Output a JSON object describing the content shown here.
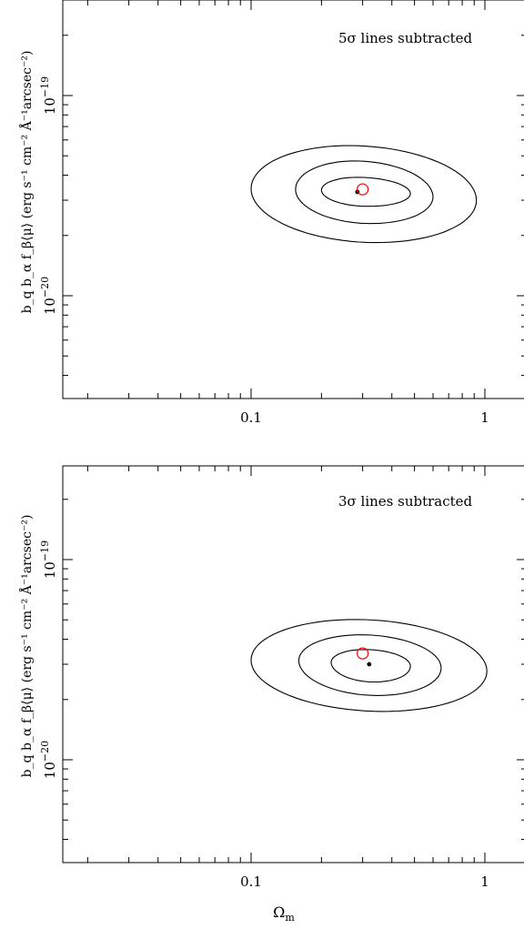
{
  "chart_data": [
    {
      "type": "scatter",
      "annotation": "5σ lines subtracted",
      "xscale": "log",
      "yscale": "log",
      "xlim": [
        0.018,
        1.6
      ],
      "ylim": [
        3.4e-21,
        3.2e-19
      ],
      "x_tick_labels": [
        {
          "value": 0.1,
          "label": "0.1"
        },
        {
          "value": 1,
          "label": "1"
        }
      ],
      "y_tick_labels": [
        {
          "value": 1e-19,
          "base": "10",
          "exp": "−19"
        },
        {
          "value": 1e-20,
          "base": "10",
          "exp": "−20"
        }
      ],
      "ylabel": "b_q b_α f_β⟨μ⟩ (erg s⁻¹ cm⁻² Å⁻¹arcsec⁻²)",
      "best_fit": {
        "x": 0.285,
        "y": 3.3e-20,
        "color": "#000000"
      },
      "reference": {
        "x": 0.3,
        "y": 3.4e-20,
        "color": "#ff0000"
      },
      "contours": [
        {
          "level": "inner",
          "center": [
            0.3,
            3.3e-20
          ],
          "x_range": [
            0.2,
            0.48
          ],
          "y_range": [
            2.8e-20,
            3.9e-20
          ]
        },
        {
          "level": "middle",
          "center": [
            0.3,
            3.25e-20
          ],
          "x_range": [
            0.155,
            0.6
          ],
          "y_range": [
            2.3e-20,
            4.7e-20
          ]
        },
        {
          "level": "outer",
          "center": [
            0.3,
            3.2e-20
          ],
          "x_range": [
            0.1,
            0.92
          ],
          "y_range": [
            1.85e-20,
            5.6e-20
          ]
        }
      ]
    },
    {
      "type": "scatter",
      "annotation": "3σ lines subtracted",
      "xscale": "log",
      "yscale": "log",
      "xlim": [
        0.018,
        1.6
      ],
      "ylim": [
        3.4e-21,
        3.2e-19
      ],
      "x_tick_labels": [
        {
          "value": 0.1,
          "label": "0.1"
        },
        {
          "value": 1,
          "label": "1"
        }
      ],
      "y_tick_labels": [
        {
          "value": 1e-19,
          "base": "10",
          "exp": "−19"
        },
        {
          "value": 1e-20,
          "base": "10",
          "exp": "−20"
        }
      ],
      "xlabel_base": "Ω",
      "xlabel_sub": "m",
      "ylabel": "b_q b_α f_β⟨μ⟩ (erg s⁻¹ cm⁻² Å⁻¹arcsec⁻²)",
      "best_fit": {
        "x": 0.32,
        "y": 3e-20,
        "color": "#000000"
      },
      "reference": {
        "x": 0.3,
        "y": 3.4e-20,
        "color": "#ff0000"
      },
      "contours": [
        {
          "level": "inner",
          "center": [
            0.32,
            3e-20
          ],
          "x_range": [
            0.22,
            0.48
          ],
          "y_range": [
            2.45e-20,
            3.55e-20
          ]
        },
        {
          "level": "middle",
          "center": [
            0.32,
            3e-20
          ],
          "x_range": [
            0.16,
            0.65
          ],
          "y_range": [
            2.1e-20,
            4.2e-20
          ]
        },
        {
          "level": "outer",
          "center": [
            0.32,
            2.95e-20
          ],
          "x_range": [
            0.1,
            1.02
          ],
          "y_range": [
            1.75e-20,
            5e-20
          ]
        }
      ]
    }
  ]
}
